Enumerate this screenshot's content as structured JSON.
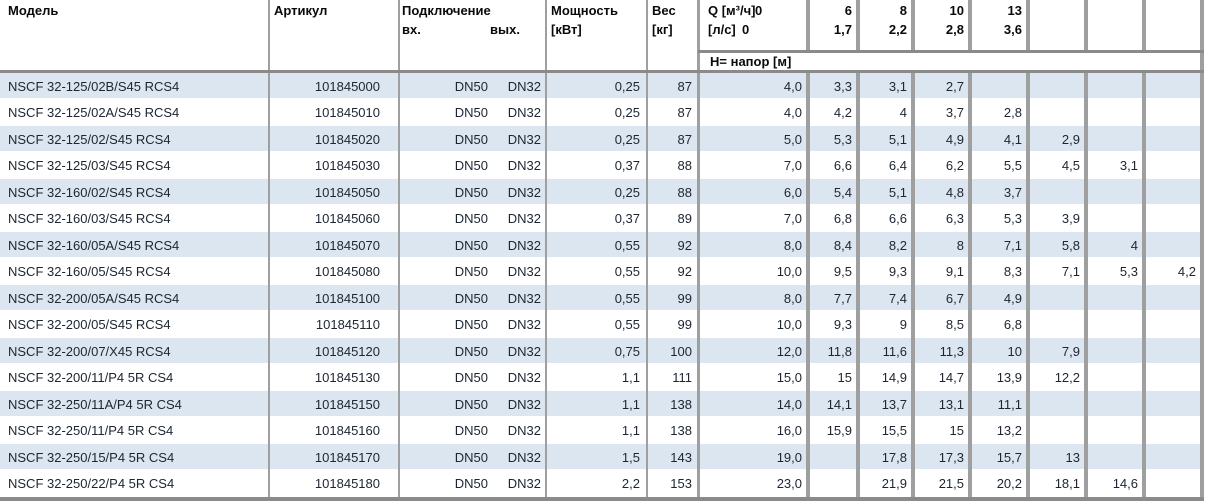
{
  "table": {
    "header": {
      "model": "Модель",
      "article": "Артикул",
      "connection": "Подключение",
      "conn_in": "вх.",
      "conn_out": "вых.",
      "power_line1": "Мощность",
      "power_line2": "[кВт]",
      "weight_line1": "Вес",
      "weight_line2": "[кг]",
      "q_row1_label": "Q [м³/ч]",
      "q_row1_zero": "0",
      "q_row2_label": "[л/с]",
      "q_row2_zero": "0",
      "q_flow_cols": [
        {
          "m3h": "6",
          "ls": "1,7"
        },
        {
          "m3h": "8",
          "ls": "2,2"
        },
        {
          "m3h": "10",
          "ls": "2,8"
        },
        {
          "m3h": "13",
          "ls": "3,6"
        },
        {
          "m3h": "",
          "ls": ""
        },
        {
          "m3h": "",
          "ls": ""
        },
        {
          "m3h": "",
          "ls": ""
        }
      ],
      "head_row_label": "Н= напор [м]"
    },
    "rows": [
      {
        "model": "NSCF 32-125/02B/S45 RCS4",
        "article": "101845000",
        "in": "DN50",
        "out": "DN32",
        "power": "0,25",
        "weight": "87",
        "h": [
          "4,0",
          "3,3",
          "3,1",
          "2,7",
          "",
          "",
          "",
          ""
        ]
      },
      {
        "model": "NSCF 32-125/02A/S45 RCS4",
        "article": "101845010",
        "in": "DN50",
        "out": "DN32",
        "power": "0,25",
        "weight": "87",
        "h": [
          "4,0",
          "4,2",
          "4",
          "3,7",
          "2,8",
          "",
          "",
          ""
        ]
      },
      {
        "model": "NSCF 32-125/02/S45 RCS4",
        "article": "101845020",
        "in": "DN50",
        "out": "DN32",
        "power": "0,25",
        "weight": "87",
        "h": [
          "5,0",
          "5,3",
          "5,1",
          "4,9",
          "4,1",
          "2,9",
          "",
          ""
        ]
      },
      {
        "model": "NSCF 32-125/03/S45 RCS4",
        "article": "101845030",
        "in": "DN50",
        "out": "DN32",
        "power": "0,37",
        "weight": "88",
        "h": [
          "7,0",
          "6,6",
          "6,4",
          "6,2",
          "5,5",
          "4,5",
          "3,1",
          ""
        ]
      },
      {
        "model": "NSCF 32-160/02/S45 RCS4",
        "article": "101845050",
        "in": "DN50",
        "out": "DN32",
        "power": "0,25",
        "weight": "88",
        "h": [
          "6,0",
          "5,4",
          "5,1",
          "4,8",
          "3,7",
          "",
          "",
          ""
        ]
      },
      {
        "model": "NSCF 32-160/03/S45 RCS4",
        "article": "101845060",
        "in": "DN50",
        "out": "DN32",
        "power": "0,37",
        "weight": "89",
        "h": [
          "7,0",
          "6,8",
          "6,6",
          "6,3",
          "5,3",
          "3,9",
          "",
          ""
        ]
      },
      {
        "model": "NSCF 32-160/05A/S45 RCS4",
        "article": "101845070",
        "in": "DN50",
        "out": "DN32",
        "power": "0,55",
        "weight": "92",
        "h": [
          "8,0",
          "8,4",
          "8,2",
          "8",
          "7,1",
          "5,8",
          "4",
          ""
        ]
      },
      {
        "model": "NSCF 32-160/05/S45 RCS4",
        "article": "101845080",
        "in": "DN50",
        "out": "DN32",
        "power": "0,55",
        "weight": "92",
        "h": [
          "10,0",
          "9,5",
          "9,3",
          "9,1",
          "8,3",
          "7,1",
          "5,3",
          "4,2"
        ]
      },
      {
        "model": "NSCF 32-200/05A/S45 RCS4",
        "article": "101845100",
        "in": "DN50",
        "out": "DN32",
        "power": "0,55",
        "weight": "99",
        "h": [
          "8,0",
          "7,7",
          "7,4",
          "6,7",
          "4,9",
          "",
          "",
          ""
        ]
      },
      {
        "model": "NSCF 32-200/05/S45 RCS4",
        "article": "101845110",
        "in": "DN50",
        "out": "DN32",
        "power": "0,55",
        "weight": "99",
        "h": [
          "10,0",
          "9,3",
          "9",
          "8,5",
          "6,8",
          "",
          "",
          ""
        ]
      },
      {
        "model": "NSCF 32-200/07/X45 RCS4",
        "article": "101845120",
        "in": "DN50",
        "out": "DN32",
        "power": "0,75",
        "weight": "100",
        "h": [
          "12,0",
          "11,8",
          "11,6",
          "11,3",
          "10",
          "7,9",
          "",
          ""
        ]
      },
      {
        "model": "NSCF 32-200/11/P4 5R CS4",
        "article": "101845130",
        "in": "DN50",
        "out": "DN32",
        "power": "1,1",
        "weight": "111",
        "h": [
          "15,0",
          "15",
          "14,9",
          "14,7",
          "13,9",
          "12,2",
          "",
          ""
        ]
      },
      {
        "model": "NSCF 32-250/11A/P4 5R CS4",
        "article": "101845150",
        "in": "DN50",
        "out": "DN32",
        "power": "1,1",
        "weight": "138",
        "h": [
          "14,0",
          "14,1",
          "13,7",
          "13,1",
          "11,1",
          "",
          "",
          ""
        ]
      },
      {
        "model": "NSCF 32-250/11/P4 5R CS4",
        "article": "101845160",
        "in": "DN50",
        "out": "DN32",
        "power": "1,1",
        "weight": "138",
        "h": [
          "16,0",
          "15,9",
          "15,5",
          "15",
          "13,2",
          "",
          "",
          ""
        ]
      },
      {
        "model": "NSCF 32-250/15/P4 5R CS4",
        "article": "101845170",
        "in": "DN50",
        "out": "DN32",
        "power": "1,5",
        "weight": "143",
        "h": [
          "19,0",
          "",
          "17,8",
          "17,3",
          "15,7",
          "13",
          "",
          ""
        ]
      },
      {
        "model": "NSCF 32-250/22/P4 5R CS4",
        "article": "101845180",
        "in": "DN50",
        "out": "DN32",
        "power": "2,2",
        "weight": "153",
        "h": [
          "23,0",
          "",
          "21,9",
          "21,5",
          "20,2",
          "18,1",
          "14,6",
          ""
        ]
      }
    ]
  },
  "colors": {
    "stripe": "#dce6f1",
    "grid": "#9f9f9f",
    "rule": "#8a8a8a",
    "text": "#1c2531"
  }
}
